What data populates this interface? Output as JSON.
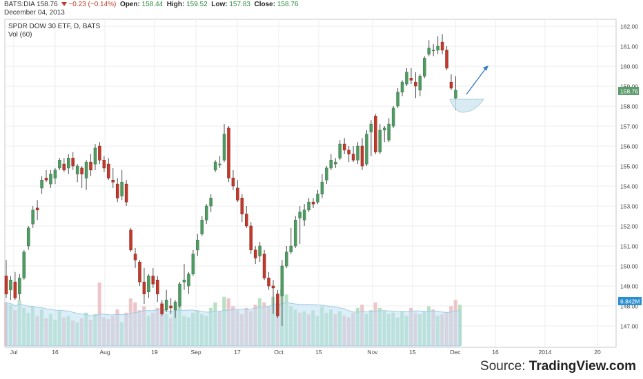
{
  "header": {
    "symbol": "BATS:DIA",
    "last": "158.76",
    "change": "−0.23 (−0.14%)",
    "open_label": "Open:",
    "open": "158.44",
    "high_label": "High:",
    "high": "159.52",
    "low_label": "Low:",
    "low": "157.83",
    "close_label": "Close:",
    "close": "158.76",
    "date": "December 04, 2013"
  },
  "legend": {
    "title": "SPDR DOW 30 ETF, D, BATS",
    "volume": "Vol (60)"
  },
  "watermark": {
    "prefix": "Source: ",
    "brand": "TradingView.com"
  },
  "colors": {
    "up": "#4f9a62",
    "down": "#c0392b",
    "vol_up": "#a8d8b5",
    "vol_down": "#e8b8bc",
    "vol_ma_fill": "#bfe2f3",
    "price_tag": "#5b9c6c",
    "vol_tag": "#2a8fd0",
    "arrow": "#3a7fc8"
  },
  "chart_data": {
    "type": "candlestick",
    "title": "SPDR DOW 30 ETF, D, BATS",
    "price_ticks": [
      "162.00",
      "161.00",
      "160.00",
      "159.00",
      "158.00",
      "157.00",
      "156.00",
      "155.00",
      "154.00",
      "153.00",
      "152.00",
      "151.00",
      "150.00",
      "149.00",
      "148.00",
      "147.00"
    ],
    "ylim": [
      146.2,
      162.3
    ],
    "x_ticks": [
      "Jul",
      "16",
      "Aug",
      "19",
      "Sep",
      "17",
      "Oct",
      "15",
      "Nov",
      "15",
      "Dec",
      "16",
      "2014",
      "20"
    ],
    "current_price": "158.76",
    "current_volume": "6.842M",
    "candles": [
      {
        "o": 149.5,
        "h": 150.3,
        "l": 148.4,
        "c": 148.6
      },
      {
        "o": 148.8,
        "h": 149.5,
        "l": 148.3,
        "c": 149.3
      },
      {
        "o": 149.2,
        "h": 149.7,
        "l": 148.3,
        "c": 148.4
      },
      {
        "o": 148.6,
        "h": 149.6,
        "l": 148.3,
        "c": 149.4
      },
      {
        "o": 149.4,
        "h": 150.8,
        "l": 149.3,
        "c": 150.7
      },
      {
        "o": 151.0,
        "h": 152.0,
        "l": 150.8,
        "c": 151.9
      },
      {
        "o": 152.1,
        "h": 153.0,
        "l": 151.9,
        "c": 152.8
      },
      {
        "o": 152.9,
        "h": 153.3,
        "l": 152.3,
        "c": 152.8
      },
      {
        "o": 153.9,
        "h": 154.5,
        "l": 153.6,
        "c": 154.3
      },
      {
        "o": 154.4,
        "h": 154.8,
        "l": 154.2,
        "c": 154.3
      },
      {
        "o": 154.1,
        "h": 154.8,
        "l": 153.9,
        "c": 154.6
      },
      {
        "o": 154.4,
        "h": 154.9,
        "l": 154.1,
        "c": 154.8
      },
      {
        "o": 154.9,
        "h": 155.4,
        "l": 154.8,
        "c": 155.3
      },
      {
        "o": 155.1,
        "h": 155.4,
        "l": 154.7,
        "c": 154.8
      },
      {
        "o": 154.9,
        "h": 155.6,
        "l": 154.6,
        "c": 155.4
      },
      {
        "o": 155.4,
        "h": 155.7,
        "l": 154.8,
        "c": 155.0
      },
      {
        "o": 154.6,
        "h": 155.1,
        "l": 154.2,
        "c": 155.0
      },
      {
        "o": 154.9,
        "h": 155.0,
        "l": 153.9,
        "c": 154.6
      },
      {
        "o": 154.4,
        "h": 155.3,
        "l": 153.8,
        "c": 155.2
      },
      {
        "o": 155.2,
        "h": 155.6,
        "l": 154.5,
        "c": 154.8
      },
      {
        "o": 155.1,
        "h": 156.1,
        "l": 154.8,
        "c": 155.9
      },
      {
        "o": 156.0,
        "h": 156.2,
        "l": 155.1,
        "c": 155.3
      },
      {
        "o": 155.3,
        "h": 155.5,
        "l": 154.7,
        "c": 154.9
      },
      {
        "o": 155.1,
        "h": 155.4,
        "l": 154.3,
        "c": 154.4
      },
      {
        "o": 154.3,
        "h": 154.9,
        "l": 153.9,
        "c": 154.2
      },
      {
        "o": 154.1,
        "h": 154.4,
        "l": 153.2,
        "c": 153.4
      },
      {
        "o": 153.5,
        "h": 154.8,
        "l": 153.3,
        "c": 154.2
      },
      {
        "o": 154.1,
        "h": 154.3,
        "l": 153.0,
        "c": 153.2
      },
      {
        "o": 151.8,
        "h": 151.9,
        "l": 150.7,
        "c": 150.8
      },
      {
        "o": 150.6,
        "h": 150.9,
        "l": 149.9,
        "c": 150.3
      },
      {
        "o": 150.2,
        "h": 150.3,
        "l": 149.0,
        "c": 149.2
      },
      {
        "o": 149.2,
        "h": 149.9,
        "l": 148.1,
        "c": 148.6
      },
      {
        "o": 148.7,
        "h": 149.6,
        "l": 148.4,
        "c": 149.5
      },
      {
        "o": 149.5,
        "h": 149.9,
        "l": 148.9,
        "c": 149.1
      },
      {
        "o": 149.3,
        "h": 149.5,
        "l": 148.2,
        "c": 148.6
      },
      {
        "o": 148.1,
        "h": 148.3,
        "l": 147.5,
        "c": 147.6
      },
      {
        "o": 147.8,
        "h": 148.8,
        "l": 147.7,
        "c": 148.3
      },
      {
        "o": 148.0,
        "h": 148.4,
        "l": 147.6,
        "c": 147.9
      },
      {
        "o": 147.8,
        "h": 148.3,
        "l": 147.4,
        "c": 148.2
      },
      {
        "o": 148.0,
        "h": 149.2,
        "l": 147.9,
        "c": 149.1
      },
      {
        "o": 149.2,
        "h": 150.1,
        "l": 148.8,
        "c": 149.3
      },
      {
        "o": 149.0,
        "h": 149.7,
        "l": 148.6,
        "c": 149.6
      },
      {
        "o": 149.6,
        "h": 150.8,
        "l": 149.5,
        "c": 150.6
      },
      {
        "o": 150.8,
        "h": 151.6,
        "l": 150.5,
        "c": 151.3
      },
      {
        "o": 151.6,
        "h": 152.5,
        "l": 151.5,
        "c": 152.3
      },
      {
        "o": 152.3,
        "h": 153.1,
        "l": 152.1,
        "c": 153.0
      },
      {
        "o": 153.0,
        "h": 153.6,
        "l": 152.7,
        "c": 153.4
      },
      {
        "o": 154.8,
        "h": 155.3,
        "l": 154.7,
        "c": 155.2
      },
      {
        "o": 155.1,
        "h": 155.5,
        "l": 154.9,
        "c": 155.1
      },
      {
        "o": 155.3,
        "h": 157.1,
        "l": 155.2,
        "c": 156.6
      },
      {
        "o": 156.9,
        "h": 157.0,
        "l": 154.2,
        "c": 154.4
      },
      {
        "o": 154.4,
        "h": 154.8,
        "l": 153.8,
        "c": 154.0
      },
      {
        "o": 153.9,
        "h": 154.3,
        "l": 153.2,
        "c": 153.3
      },
      {
        "o": 153.4,
        "h": 153.6,
        "l": 152.2,
        "c": 152.6
      },
      {
        "o": 152.6,
        "h": 153.0,
        "l": 151.9,
        "c": 152.0
      },
      {
        "o": 152.0,
        "h": 152.2,
        "l": 150.6,
        "c": 150.8
      },
      {
        "o": 150.8,
        "h": 151.0,
        "l": 150.1,
        "c": 150.4
      },
      {
        "o": 150.5,
        "h": 151.2,
        "l": 150.2,
        "c": 151.0
      },
      {
        "o": 150.6,
        "h": 150.8,
        "l": 149.3,
        "c": 149.4
      },
      {
        "o": 149.4,
        "h": 149.7,
        "l": 148.8,
        "c": 149.0
      },
      {
        "o": 149.0,
        "h": 149.3,
        "l": 147.6,
        "c": 148.9
      },
      {
        "o": 148.6,
        "h": 148.8,
        "l": 147.4,
        "c": 147.5
      },
      {
        "o": 148.5,
        "h": 150.3,
        "l": 147.0,
        "c": 150.0
      },
      {
        "o": 150.0,
        "h": 151.0,
        "l": 149.9,
        "c": 150.7
      },
      {
        "o": 150.7,
        "h": 151.9,
        "l": 150.6,
        "c": 151.0
      },
      {
        "o": 151.0,
        "h": 152.5,
        "l": 150.9,
        "c": 152.3
      },
      {
        "o": 152.4,
        "h": 153.0,
        "l": 151.1,
        "c": 152.7
      },
      {
        "o": 152.3,
        "h": 153.1,
        "l": 152.0,
        "c": 152.8
      },
      {
        "o": 152.8,
        "h": 153.4,
        "l": 152.7,
        "c": 153.2
      },
      {
        "o": 153.2,
        "h": 153.4,
        "l": 152.9,
        "c": 153.1
      },
      {
        "o": 153.2,
        "h": 153.8,
        "l": 153.1,
        "c": 153.6
      },
      {
        "o": 153.6,
        "h": 154.6,
        "l": 153.4,
        "c": 154.2
      },
      {
        "o": 154.3,
        "h": 155.0,
        "l": 154.1,
        "c": 154.9
      },
      {
        "o": 154.9,
        "h": 155.6,
        "l": 154.8,
        "c": 155.3
      },
      {
        "o": 155.1,
        "h": 155.4,
        "l": 154.9,
        "c": 155.2
      },
      {
        "o": 155.4,
        "h": 156.3,
        "l": 155.3,
        "c": 156.1
      },
      {
        "o": 156.1,
        "h": 156.4,
        "l": 155.6,
        "c": 155.8
      },
      {
        "o": 155.8,
        "h": 156.0,
        "l": 155.2,
        "c": 155.6
      },
      {
        "o": 155.6,
        "h": 156.0,
        "l": 155.2,
        "c": 155.3
      },
      {
        "o": 155.3,
        "h": 156.2,
        "l": 155.1,
        "c": 156.0
      },
      {
        "o": 156.0,
        "h": 156.4,
        "l": 154.8,
        "c": 155.0
      },
      {
        "o": 155.1,
        "h": 156.8,
        "l": 155.0,
        "c": 156.6
      },
      {
        "o": 156.7,
        "h": 157.3,
        "l": 155.5,
        "c": 157.1
      },
      {
        "o": 157.5,
        "h": 157.6,
        "l": 155.6,
        "c": 155.7
      },
      {
        "o": 155.7,
        "h": 157.1,
        "l": 155.6,
        "c": 156.8
      },
      {
        "o": 156.8,
        "h": 157.0,
        "l": 156.2,
        "c": 156.9
      },
      {
        "o": 156.3,
        "h": 157.4,
        "l": 156.2,
        "c": 157.1
      },
      {
        "o": 157.0,
        "h": 158.0,
        "l": 156.9,
        "c": 157.9
      },
      {
        "o": 158.0,
        "h": 158.9,
        "l": 157.9,
        "c": 158.7
      },
      {
        "o": 158.7,
        "h": 159.3,
        "l": 158.5,
        "c": 159.2
      },
      {
        "o": 159.1,
        "h": 159.9,
        "l": 159.0,
        "c": 159.7
      },
      {
        "o": 159.4,
        "h": 159.9,
        "l": 159.1,
        "c": 159.3
      },
      {
        "o": 159.2,
        "h": 159.7,
        "l": 158.4,
        "c": 159.0
      },
      {
        "o": 158.8,
        "h": 159.6,
        "l": 158.5,
        "c": 159.5
      },
      {
        "o": 159.5,
        "h": 160.5,
        "l": 159.4,
        "c": 160.4
      },
      {
        "o": 160.6,
        "h": 161.3,
        "l": 160.5,
        "c": 160.9
      },
      {
        "o": 160.8,
        "h": 161.1,
        "l": 160.5,
        "c": 160.8
      },
      {
        "o": 160.8,
        "h": 161.5,
        "l": 160.6,
        "c": 161.0
      },
      {
        "o": 161.2,
        "h": 161.6,
        "l": 160.6,
        "c": 160.8
      },
      {
        "o": 160.8,
        "h": 161.0,
        "l": 159.8,
        "c": 159.9
      },
      {
        "o": 159.2,
        "h": 159.6,
        "l": 158.8,
        "c": 158.9
      },
      {
        "o": 158.4,
        "h": 159.5,
        "l": 157.8,
        "c": 158.8
      }
    ],
    "volume": [
      {
        "v": 0.55,
        "up": false
      },
      {
        "v": 0.52,
        "up": true
      },
      {
        "v": 0.45,
        "up": false
      },
      {
        "v": 0.58,
        "up": true
      },
      {
        "v": 0.48,
        "up": true
      },
      {
        "v": 0.42,
        "up": true
      },
      {
        "v": 0.5,
        "up": true
      },
      {
        "v": 0.38,
        "up": false
      },
      {
        "v": 0.46,
        "up": true
      },
      {
        "v": 0.35,
        "up": false
      },
      {
        "v": 0.4,
        "up": true
      },
      {
        "v": 0.33,
        "up": true
      },
      {
        "v": 0.44,
        "up": true
      },
      {
        "v": 0.36,
        "up": false
      },
      {
        "v": 0.38,
        "up": true
      },
      {
        "v": 0.32,
        "up": false
      },
      {
        "v": 0.3,
        "up": true
      },
      {
        "v": 0.35,
        "up": false
      },
      {
        "v": 0.42,
        "up": true
      },
      {
        "v": 0.33,
        "up": false
      },
      {
        "v": 0.4,
        "up": true
      },
      {
        "v": 0.8,
        "up": false
      },
      {
        "v": 0.36,
        "up": false
      },
      {
        "v": 0.34,
        "up": false
      },
      {
        "v": 0.38,
        "up": false
      },
      {
        "v": 0.46,
        "up": false
      },
      {
        "v": 0.3,
        "up": true
      },
      {
        "v": 0.42,
        "up": false
      },
      {
        "v": 0.6,
        "up": false
      },
      {
        "v": 0.55,
        "up": false
      },
      {
        "v": 0.45,
        "up": false
      },
      {
        "v": 0.5,
        "up": false
      },
      {
        "v": 0.38,
        "up": true
      },
      {
        "v": 0.42,
        "up": false
      },
      {
        "v": 0.48,
        "up": false
      },
      {
        "v": 0.55,
        "up": false
      },
      {
        "v": 0.4,
        "up": true
      },
      {
        "v": 0.35,
        "up": false
      },
      {
        "v": 0.44,
        "up": true
      },
      {
        "v": 0.5,
        "up": true
      },
      {
        "v": 0.38,
        "up": true
      },
      {
        "v": 0.36,
        "up": true
      },
      {
        "v": 0.42,
        "up": true
      },
      {
        "v": 0.45,
        "up": true
      },
      {
        "v": 0.4,
        "up": true
      },
      {
        "v": 0.38,
        "up": true
      },
      {
        "v": 0.48,
        "up": true
      },
      {
        "v": 0.55,
        "up": true
      },
      {
        "v": 0.44,
        "up": false
      },
      {
        "v": 0.62,
        "up": true
      },
      {
        "v": 0.6,
        "up": false
      },
      {
        "v": 0.5,
        "up": false
      },
      {
        "v": 0.45,
        "up": false
      },
      {
        "v": 0.4,
        "up": false
      },
      {
        "v": 0.48,
        "up": false
      },
      {
        "v": 0.44,
        "up": false
      },
      {
        "v": 0.52,
        "up": false
      },
      {
        "v": 0.6,
        "up": true
      },
      {
        "v": 0.55,
        "up": false
      },
      {
        "v": 0.5,
        "up": false
      },
      {
        "v": 0.62,
        "up": true
      },
      {
        "v": 0.55,
        "up": false
      },
      {
        "v": 0.72,
        "up": true
      },
      {
        "v": 0.65,
        "up": true
      },
      {
        "v": 0.5,
        "up": true
      },
      {
        "v": 0.46,
        "up": true
      },
      {
        "v": 0.42,
        "up": false
      },
      {
        "v": 0.44,
        "up": true
      },
      {
        "v": 0.4,
        "up": false
      },
      {
        "v": 0.45,
        "up": true
      },
      {
        "v": 0.38,
        "up": true
      },
      {
        "v": 0.5,
        "up": true
      },
      {
        "v": 0.42,
        "up": true
      },
      {
        "v": 0.46,
        "up": true
      },
      {
        "v": 0.4,
        "up": false
      },
      {
        "v": 0.44,
        "up": true
      },
      {
        "v": 0.38,
        "up": false
      },
      {
        "v": 0.36,
        "up": false
      },
      {
        "v": 0.42,
        "up": false
      },
      {
        "v": 0.48,
        "up": true
      },
      {
        "v": 0.52,
        "up": false
      },
      {
        "v": 0.4,
        "up": true
      },
      {
        "v": 0.45,
        "up": true
      },
      {
        "v": 0.55,
        "up": false
      },
      {
        "v": 0.48,
        "up": true
      },
      {
        "v": 0.44,
        "up": true
      },
      {
        "v": 0.4,
        "up": true
      },
      {
        "v": 0.42,
        "up": true
      },
      {
        "v": 0.36,
        "up": true
      },
      {
        "v": 0.44,
        "up": true
      },
      {
        "v": 0.38,
        "up": true
      },
      {
        "v": 0.48,
        "up": false
      },
      {
        "v": 0.42,
        "up": false
      },
      {
        "v": 0.4,
        "up": true
      },
      {
        "v": 0.44,
        "up": true
      },
      {
        "v": 0.5,
        "up": true
      },
      {
        "v": 0.46,
        "up": false
      },
      {
        "v": 0.38,
        "up": true
      },
      {
        "v": 0.4,
        "up": false
      },
      {
        "v": 0.42,
        "up": false
      },
      {
        "v": 0.5,
        "up": false
      },
      {
        "v": 0.58,
        "up": false
      },
      {
        "v": 0.52,
        "up": true
      }
    ]
  }
}
